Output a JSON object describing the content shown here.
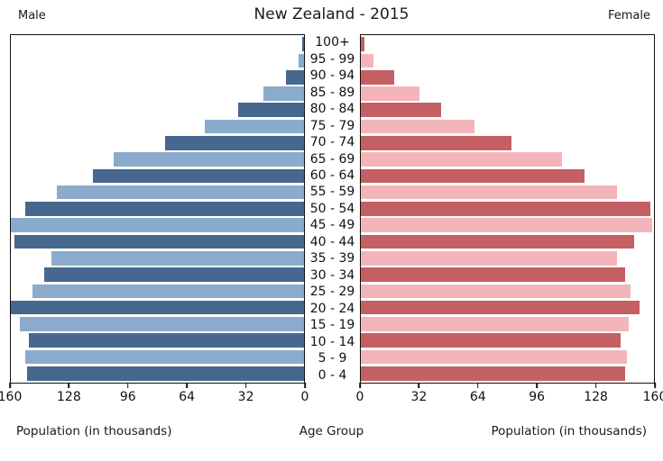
{
  "chart_data": {
    "type": "bar",
    "subtype": "population-pyramid",
    "title": "New Zealand - 2015",
    "left_header": "Male",
    "right_header": "Female",
    "xlabel_left": "Population (in thousands)",
    "xlabel_center": "Age Group",
    "xlabel_right": "Population (in thousands)",
    "xlim": [
      0,
      160
    ],
    "x_ticks_left": [
      "160",
      "128",
      "96",
      "64",
      "32",
      "0"
    ],
    "x_ticks_right": [
      "0",
      "32",
      "64",
      "96",
      "128",
      "160"
    ],
    "grid": "off",
    "age_groups": [
      "100+",
      "95 - 99",
      "90 - 94",
      "85 - 89",
      "80 - 84",
      "75 - 79",
      "70 - 74",
      "65 - 69",
      "60 - 64",
      "55 - 59",
      "50 - 54",
      "45 - 49",
      "40 - 44",
      "35 - 39",
      "30 - 34",
      "25 - 29",
      "20 - 24",
      "15 - 19",
      "10 - 14",
      "5 - 9",
      "0 - 4"
    ],
    "series": [
      {
        "name": "Male",
        "values": [
          1,
          3,
          10,
          22,
          36,
          54,
          76,
          104,
          115,
          135,
          152,
          161,
          158,
          138,
          142,
          148,
          162,
          155,
          150,
          152,
          151
        ]
      },
      {
        "name": "Female",
        "values": [
          2,
          7,
          18,
          32,
          44,
          62,
          82,
          110,
          122,
          140,
          158,
          159,
          149,
          140,
          144,
          147,
          152,
          146,
          142,
          145,
          144
        ]
      }
    ],
    "colors": {
      "male_dark": "#47688e",
      "male_light": "#8babcd",
      "female_dark": "#c45f63",
      "female_light": "#f3b5ba",
      "axis": "#111111"
    }
  }
}
